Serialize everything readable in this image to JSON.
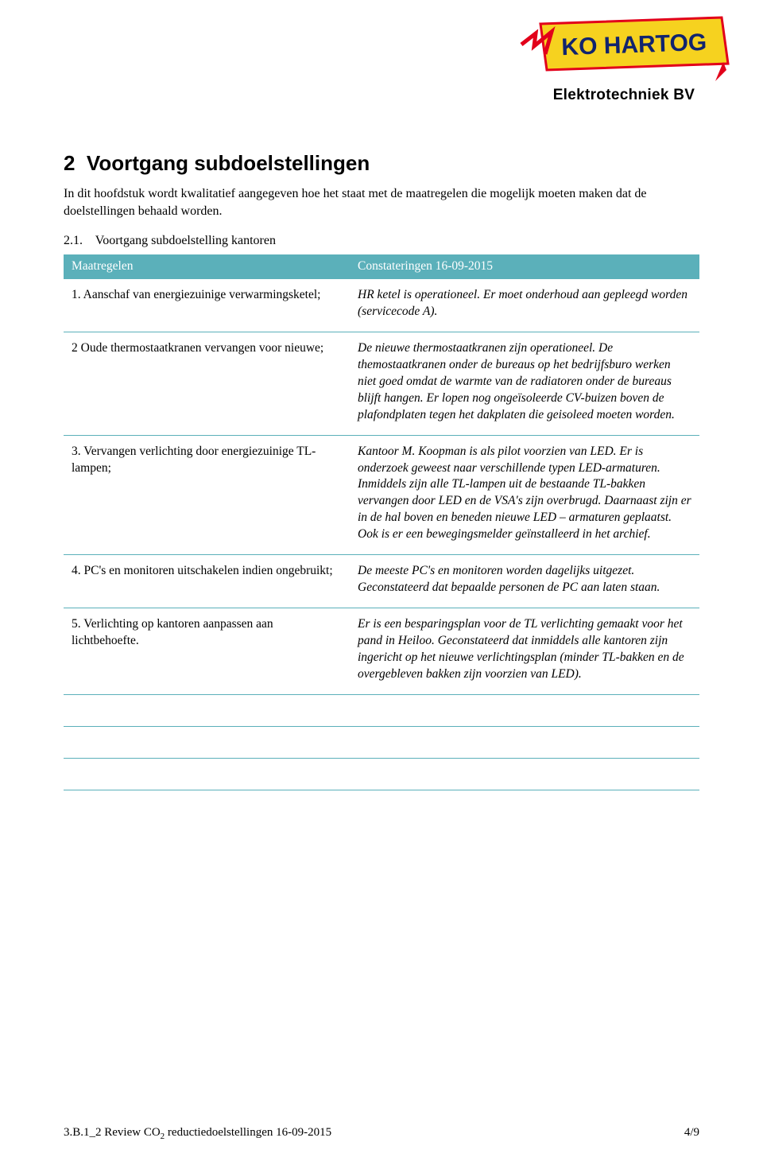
{
  "logo": {
    "main_text": "KO HARTOG",
    "sub_text": "Elektrotechniek BV",
    "bg_color": "#f6d21f",
    "text_color": "#11246e",
    "outline_color": "#e2001a",
    "bolt_color": "#e2001a"
  },
  "section": {
    "number": "2",
    "title": "Voortgang subdoelstellingen",
    "intro": "In dit hoofdstuk wordt kwalitatief aangegeven hoe het staat met de maatregelen die mogelijk moeten maken dat de doelstellingen behaald worden."
  },
  "subsection": {
    "number": "2.1.",
    "title": "Voortgang subdoelstelling kantoren"
  },
  "table": {
    "header_bg": "#5bb0ba",
    "header_fg": "#ffffff",
    "border_color": "#5bb0ba",
    "col_left": "Maatregelen",
    "col_right": "Constateringen 16-09-2015",
    "rows": [
      {
        "left": "1.   Aanschaf van energiezuinige verwarmingsketel;",
        "right": "HR ketel is operationeel. Er moet onderhoud aan gepleegd worden (servicecode A)."
      },
      {
        "left": "2   Oude thermostaatkranen vervangen voor nieuwe;",
        "right": "De nieuwe thermostaatkranen zijn operationeel. De themostaatkranen onder de bureaus op het bedrijfsburo werken niet goed omdat de warmte van de radiatoren onder de bureaus blijft hangen. Er lopen nog ongeïsoleerde CV-buizen boven de plafondplaten tegen het dakplaten die geisoleed moeten worden."
      },
      {
        "left": "3.   Vervangen verlichting door energiezuinige TL-lampen;",
        "right": "Kantoor M. Koopman is als pilot voorzien van LED. Er is onderzoek geweest naar verschillende typen LED-armaturen. Inmiddels zijn alle TL-lampen uit de bestaande TL-bakken vervangen door LED en de VSA's zijn overbrugd. Daarnaast zijn er in de hal boven en beneden nieuwe LED – armaturen geplaatst. Ook is er een bewegingsmelder geïnstalleerd in het archief."
      },
      {
        "left": "4.   PC's en monitoren uitschakelen indien ongebruikt;",
        "right": "De meeste PC's en monitoren worden dagelijks uitgezet. Geconstateerd dat bepaalde personen de PC aan laten staan."
      },
      {
        "left": "5.   Verlichting op kantoren aanpassen aan lichtbehoefte.",
        "right": "Er is een besparingsplan voor de TL verlichting gemaakt voor het pand in Heiloo. Geconstateerd dat inmiddels alle kantoren zijn ingericht op het nieuwe verlichtingsplan (minder TL-bakken en de overgebleven bakken zijn voorzien van LED)."
      },
      {
        "left": "",
        "right": ""
      },
      {
        "left": "",
        "right": ""
      },
      {
        "left": "",
        "right": ""
      }
    ]
  },
  "footer": {
    "left_prefix": "3.B.1_2 Review CO",
    "left_sub": "2",
    "left_suffix": " reductiedoelstellingen 16-09-2015",
    "right": "4/9"
  }
}
